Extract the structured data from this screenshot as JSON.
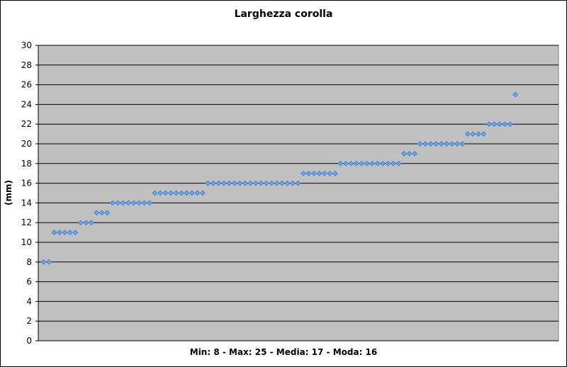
{
  "chart_data": {
    "type": "scatter",
    "title": "Larghezza corolla",
    "ylabel": "(mm)",
    "xlabel": "Min: 8 - Max: 25 - Media: 17 - Moda: 16",
    "ylim": [
      0,
      30
    ],
    "yticks": [
      0,
      2,
      4,
      6,
      8,
      10,
      12,
      14,
      16,
      18,
      20,
      22,
      24,
      26,
      28,
      30
    ],
    "grid": true,
    "legend": "none",
    "colors": {
      "plot_bg": "#c0c0c0",
      "marker": "#6aa6f0",
      "marker_edge": "#3a78c8",
      "grid": "#000000"
    },
    "series": [
      {
        "values": [
          8,
          8,
          11,
          11,
          11,
          11,
          11,
          12,
          12,
          12,
          13,
          13,
          13,
          14,
          14,
          14,
          14,
          14,
          14,
          14,
          14,
          15,
          15,
          15,
          15,
          15,
          15,
          15,
          15,
          15,
          15,
          16,
          16,
          16,
          16,
          16,
          16,
          16,
          16,
          16,
          16,
          16,
          16,
          16,
          16,
          16,
          16,
          16,
          16,
          17,
          17,
          17,
          17,
          17,
          17,
          17,
          18,
          18,
          18,
          18,
          18,
          18,
          18,
          18,
          18,
          18,
          18,
          18,
          19,
          19,
          19,
          20,
          20,
          20,
          20,
          20,
          20,
          20,
          20,
          20,
          21,
          21,
          21,
          21,
          22,
          22,
          22,
          22,
          22,
          25
        ]
      }
    ]
  }
}
